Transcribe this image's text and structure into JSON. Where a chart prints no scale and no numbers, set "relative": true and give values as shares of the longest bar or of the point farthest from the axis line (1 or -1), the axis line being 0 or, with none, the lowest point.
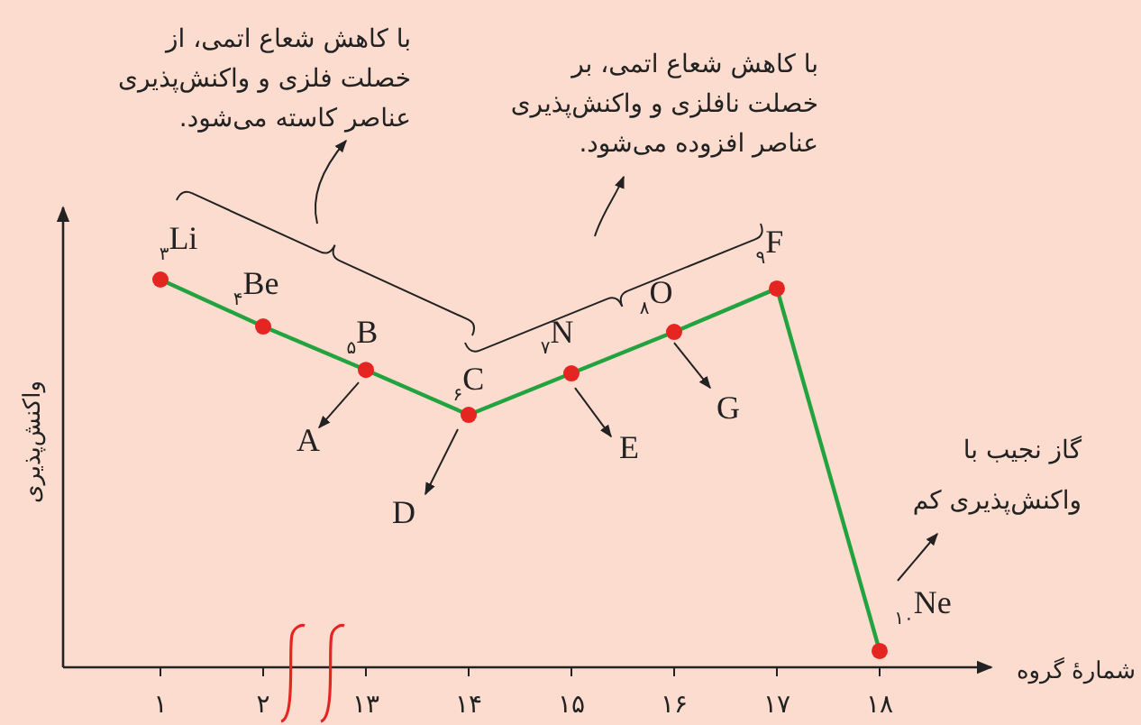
{
  "chart_data": {
    "type": "line",
    "relative": true,
    "xlabel": "شمارهٔ گروه",
    "ylabel": "واکنش‌پذیری",
    "categories": [
      "۱",
      "۲",
      "۱۳",
      "۱۴",
      "۱۵",
      "۱۶",
      "۱۷",
      "۱۸"
    ],
    "series": [
      {
        "color": "#22a33f",
        "colors": [
          "#e52521",
          "#e52521",
          "#e52521",
          "#e52521",
          "#e52521",
          "#e52521",
          "#e52521",
          "#e52521"
        ],
        "values": [
          1,
          0.879,
          0.767,
          0.651,
          0.758,
          0.865,
          0.977,
          0.042
        ]
      }
    ],
    "marker": "circle",
    "line_style": "solid",
    "annotations": [
      "با کاهش شعاع اتمی، از\nخصلت فلزی و واکنش‌پذیری\nعناصر کاسته می‌شود.",
      "با کاهش شعاع اتمی، بر\nخصلت نافلزی و واکنش‌پذیری\nعناصر افزوده می‌شود.",
      {
        "text": "$_{۳}$Li",
        "x": "۱",
        "y": 1
      },
      {
        "text": "$_{۴}$Be",
        "x": "۲",
        "y": 0.879
      },
      {
        "text": "$_{۵}$B",
        "x": "۱۳",
        "y": 0.767
      },
      {
        "text": "$_{۶}$C",
        "x": "۱۴",
        "y": 0.651
      },
      {
        "text": "$_{۷}$N",
        "x": "۱۵",
        "y": 0.758
      },
      {
        "text": "$_{۸}$O",
        "x": "۱۶",
        "y": 0.865
      },
      {
        "text": "$_{۹}$F",
        "x": "۱۷",
        "y": 0.977
      },
      {
        "text": "$_{۱۰}$Ne",
        "x": "۱۸",
        "y": 0.042
      },
      {
        "text": "A",
        "x": "۱۳",
        "y": 0.767
      },
      {
        "text": "D",
        "x": "۱۴",
        "y": 0.651
      },
      {
        "text": "E",
        "x": "۱۵",
        "y": 0.758
      },
      {
        "text": "G",
        "x": "۱۶",
        "y": 0.865
      },
      "گاز نجیب با\nواکنش‌پذیری کم"
    ]
  }
}
